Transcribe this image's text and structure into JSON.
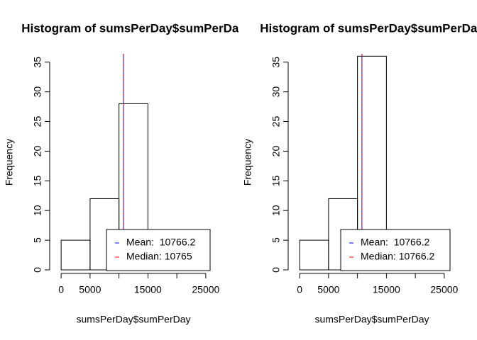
{
  "chart_data": [
    {
      "type": "histogram",
      "title": "Histogram of sumsPerDay$sumPerDay",
      "xlabel": "sumsPerDay$sumPerDay",
      "ylabel": "Frequency",
      "bins": [
        0,
        5000,
        10000,
        15000,
        20000,
        25000
      ],
      "counts": [
        5,
        12,
        28,
        6,
        2
      ],
      "xlim": [
        -1000,
        26000
      ],
      "ylim": [
        0,
        36.4
      ],
      "xticks": [
        0,
        5000,
        15000,
        25000
      ],
      "xtick_marks": [
        0,
        5000,
        10000,
        15000,
        20000,
        25000
      ],
      "yticks": [
        0,
        5,
        10,
        15,
        20,
        25,
        30,
        35
      ],
      "reference_lines": [
        {
          "name": "Mean:  10766.2",
          "value": 10766.2,
          "color": "#0000ff"
        },
        {
          "name": "Median: 10765",
          "value": 10765,
          "color": "#ff0000"
        }
      ],
      "legend": "bottom-right"
    },
    {
      "type": "histogram",
      "title": "Histogram of sumsPerDay$sumPerDay",
      "xlabel": "sumsPerDay$sumPerDay",
      "ylabel": "Frequency",
      "bins": [
        0,
        5000,
        10000,
        15000,
        20000,
        25000
      ],
      "counts": [
        5,
        12,
        36,
        6,
        2
      ],
      "xlim": [
        -1000,
        26000
      ],
      "ylim": [
        0,
        36.4
      ],
      "xticks": [
        0,
        5000,
        15000,
        25000
      ],
      "xtick_marks": [
        0,
        5000,
        10000,
        15000,
        20000,
        25000
      ],
      "yticks": [
        0,
        5,
        10,
        15,
        20,
        25,
        30,
        35
      ],
      "reference_lines": [
        {
          "name": "Mean:  10766.2",
          "value": 10766.2,
          "color": "#0000ff"
        },
        {
          "name": "Median: 10766.2",
          "value": 10766.2,
          "color": "#ff0000"
        }
      ],
      "legend": "bottom-right"
    }
  ]
}
